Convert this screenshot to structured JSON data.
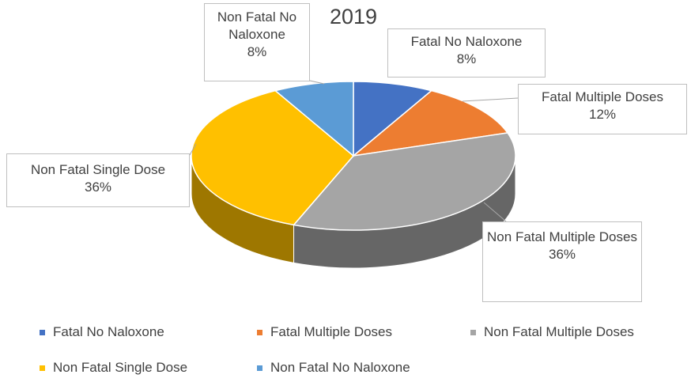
{
  "chart_data": {
    "type": "pie",
    "title": "2019",
    "categories": [
      "Fatal No Naloxone",
      "Fatal Multiple Doses",
      "Non Fatal Multiple Doses",
      "Non Fatal Single Dose",
      "Non Fatal No Naloxone"
    ],
    "values": [
      8,
      12,
      36,
      36,
      8
    ],
    "value_labels": [
      "8%",
      "12%",
      "36%",
      "36%",
      "8%"
    ],
    "colors": [
      "#4472c4",
      "#ed7d31",
      "#a5a5a5",
      "#ffc000",
      "#5b9bd5"
    ],
    "legend": "bottom"
  }
}
